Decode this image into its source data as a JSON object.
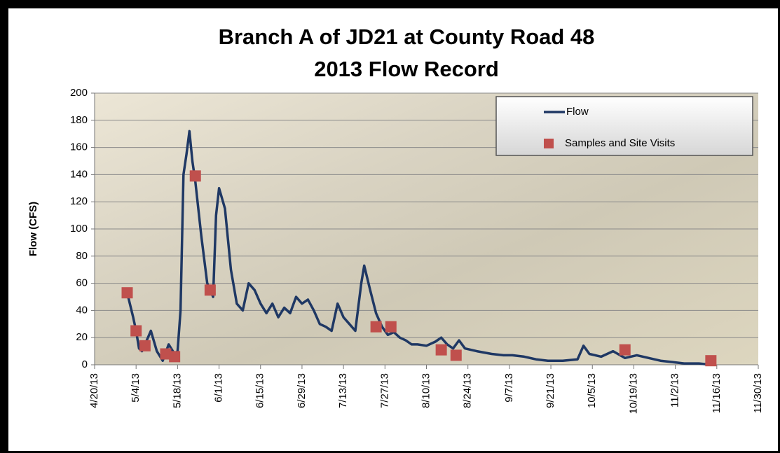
{
  "chart_data": {
    "type": "line",
    "title": "Branch A of JD21 at County Road 48",
    "subtitle": "2013 Flow Record",
    "y_label": "Flow (CFS)",
    "xlim": [
      "4/20/13",
      "11/30/13"
    ],
    "xticks": [
      "4/20/13",
      "5/4/13",
      "5/18/13",
      "6/1/13",
      "6/15/13",
      "6/29/13",
      "7/13/13",
      "7/27/13",
      "8/10/13",
      "8/24/13",
      "9/7/13",
      "9/21/13",
      "10/5/13",
      "10/19/13",
      "11/2/13",
      "11/16/13",
      "11/30/13"
    ],
    "ylim": [
      0,
      200
    ],
    "yticks": [
      0,
      20,
      40,
      60,
      80,
      100,
      120,
      140,
      160,
      180,
      200
    ],
    "grid": true,
    "legend": "upper right",
    "series": [
      {
        "name": "Flow",
        "type": "line",
        "color": "#1f3864",
        "x": [
          "5/1/13",
          "5/3/13",
          "5/4/13",
          "5/5/13",
          "5/6/13",
          "5/8/13",
          "5/9/13",
          "5/11/13",
          "5/13/13",
          "5/15/13",
          "5/17/13",
          "5/18/13",
          "5/19/13",
          "5/20/13",
          "5/21/13",
          "5/22/13",
          "5/23/13",
          "5/24/13",
          "5/26/13",
          "5/28/13",
          "5/30/13",
          "5/31/13",
          "6/1/13",
          "6/3/13",
          "6/5/13",
          "6/7/13",
          "6/9/13",
          "6/11/13",
          "6/13/13",
          "6/15/13",
          "6/17/13",
          "6/19/13",
          "6/21/13",
          "6/23/13",
          "6/25/13",
          "6/27/13",
          "6/29/13",
          "7/1/13",
          "7/3/13",
          "7/5/13",
          "7/7/13",
          "7/9/13",
          "7/11/13",
          "7/13/13",
          "7/15/13",
          "7/17/13",
          "7/19/13",
          "7/20/13",
          "7/22/13",
          "7/24/13",
          "7/26/13",
          "7/28/13",
          "7/30/13",
          "8/1/13",
          "8/3/13",
          "8/5/13",
          "8/7/13",
          "8/10/13",
          "8/13/13",
          "8/15/13",
          "8/17/13",
          "8/19/13",
          "8/21/13",
          "8/23/13",
          "8/27/13",
          "9/1/13",
          "9/5/13",
          "9/8/13",
          "9/12/13",
          "9/16/13",
          "9/20/13",
          "9/25/13",
          "9/30/13",
          "10/2/13",
          "10/4/13",
          "10/8/13",
          "10/12/13",
          "10/16/13",
          "10/20/13",
          "10/24/13",
          "10/28/13",
          "11/1/13",
          "11/5/13",
          "11/10/13",
          "11/14/13"
        ],
        "values": [
          53,
          35,
          25,
          12,
          10,
          20,
          25,
          10,
          3,
          15,
          8,
          10,
          40,
          140,
          155,
          172,
          150,
          135,
          95,
          60,
          50,
          110,
          130,
          115,
          70,
          45,
          40,
          60,
          55,
          45,
          38,
          45,
          35,
          42,
          38,
          50,
          45,
          48,
          40,
          30,
          28,
          25,
          45,
          35,
          30,
          25,
          60,
          73,
          55,
          38,
          28,
          22,
          24,
          20,
          18,
          15,
          15,
          14,
          17,
          20,
          15,
          12,
          18,
          12,
          10,
          8,
          7,
          7,
          6,
          4,
          3,
          3,
          4,
          14,
          8,
          6,
          10,
          5,
          7,
          5,
          3,
          2,
          1,
          1,
          0
        ]
      },
      {
        "name": "Samples and Site Visits",
        "type": "scatter",
        "color": "#c0504d",
        "x": [
          "5/1/13",
          "5/4/13",
          "5/7/13",
          "5/14/13",
          "5/17/13",
          "5/24/13",
          "5/29/13",
          "7/24/13",
          "7/29/13",
          "8/15/13",
          "8/20/13",
          "10/16/13",
          "11/14/13"
        ],
        "values": [
          53,
          25,
          14,
          8,
          6,
          139,
          55,
          28,
          28,
          11,
          7,
          11,
          3
        ]
      }
    ]
  }
}
